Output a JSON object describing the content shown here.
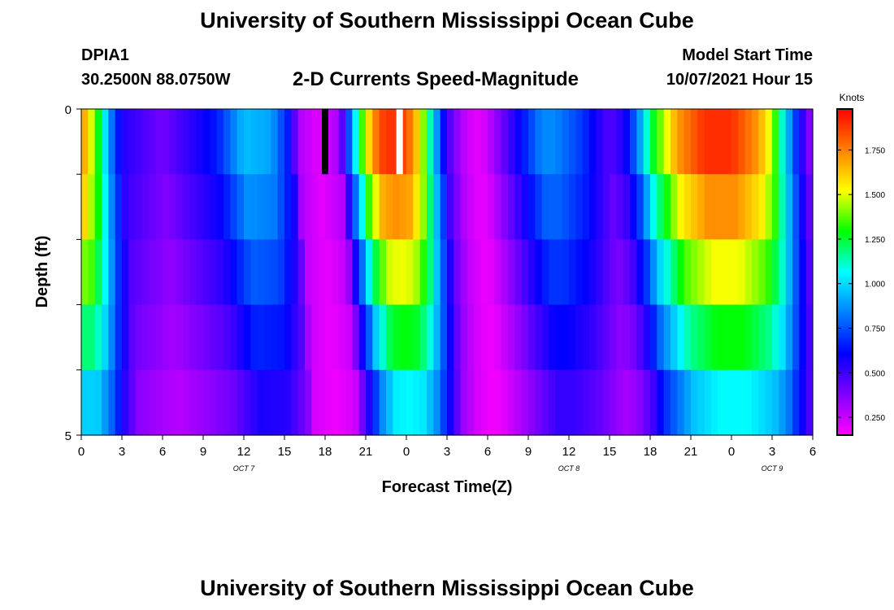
{
  "header": {
    "title": "University of Southern Mississippi Ocean Cube",
    "station": "DPIA1",
    "coords": "30.2500N  88.0750W",
    "subtitle": "2-D Currents Speed-Magnitude",
    "model_label": "Model Start Time",
    "model_time": "10/07/2021 Hour 15"
  },
  "footer": {
    "title": "University of Southern Mississippi Ocean Cube"
  },
  "chart_data": {
    "type": "heatmap",
    "xlabel": "Forecast Time(Z)",
    "ylabel": "Depth (ft)",
    "colorbar_label": "Knots",
    "x_tick_labels": [
      "0",
      "3",
      "6",
      "9",
      "12",
      "15",
      "18",
      "21",
      "0",
      "3",
      "6",
      "9",
      "12",
      "15",
      "18",
      "21",
      "0",
      "3",
      "6"
    ],
    "y_tick_labels": [
      "0",
      "5"
    ],
    "date_labels": [
      "OCT 7",
      "OCT 8",
      "OCT 9"
    ],
    "x_range_hours": [
      0,
      54
    ],
    "y_range": [
      0,
      5
    ],
    "colorbar_ticks": [
      "0.250",
      "0.500",
      "0.750",
      "1.000",
      "1.250",
      "1.500",
      "1.750"
    ],
    "colorbar_range": [
      0.15,
      1.98
    ],
    "colorscale": [
      "#ff00ff",
      "#8000ff",
      "#0000ff",
      "#0080ff",
      "#00ffff",
      "#00ff00",
      "#ffff00",
      "#ff8000",
      "#ff0000"
    ],
    "missing_color": "#ffffff",
    "depth_layers": 5,
    "profile_hours": [
      0,
      1,
      2,
      3,
      6,
      10,
      12,
      14,
      15.5,
      16,
      17.5,
      19,
      20,
      21,
      22,
      23,
      24,
      25,
      26,
      27,
      28,
      29,
      29.5,
      30,
      32,
      34,
      35,
      37,
      39,
      40,
      41,
      42,
      44,
      46,
      48,
      50,
      51,
      52,
      53,
      54
    ],
    "profile_knots": [
      1.75,
      1.4,
      0.9,
      0.55,
      0.4,
      0.65,
      0.95,
      0.9,
      0.6,
      0.3,
      0.2,
      0.3,
      0.9,
      1.5,
      1.85,
      1.9,
      1.85,
      1.55,
      1.0,
      0.5,
      0.3,
      0.2,
      0.2,
      0.25,
      0.55,
      0.85,
      0.85,
      0.7,
      0.45,
      0.55,
      0.8,
      1.2,
      1.7,
      1.9,
      1.9,
      1.7,
      1.45,
      1.0,
      0.6,
      0.3
    ],
    "layer_factors": [
      1.0,
      0.9,
      0.78,
      0.65,
      0.52
    ],
    "layer_lag_hours": [
      0,
      0.3,
      0.6,
      0.9,
      1.2
    ],
    "missing_cells": [
      {
        "hour": 18,
        "layer": 0,
        "color": "#000000"
      },
      {
        "hour": 23.5,
        "layer": 0,
        "color": "#ffffff"
      }
    ]
  }
}
